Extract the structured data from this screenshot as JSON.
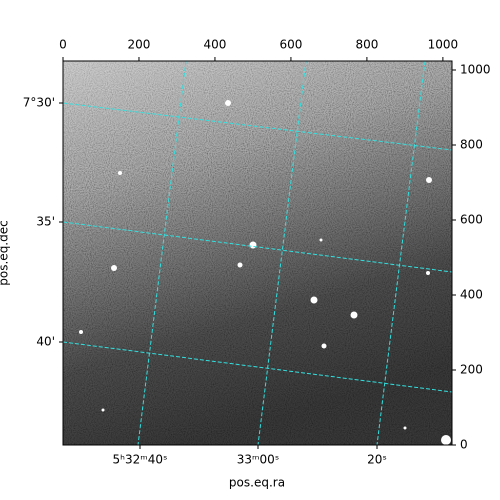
{
  "chart_data": {
    "type": "image",
    "xlabel": "pos.eq.ra",
    "ylabel": "pos.eq.dec",
    "xlim": [
      0,
      1024
    ],
    "ylim": [
      0,
      1024
    ],
    "xticks": [
      0,
      200,
      400,
      600,
      800,
      1000
    ],
    "yticks": [
      0,
      200,
      400,
      600,
      800,
      1000
    ],
    "ra_tick_labels": [
      "5ʰ32ᵐ40ˢ",
      "33ᵐ00ˢ",
      "20ˢ"
    ],
    "dec_tick_labels": [
      "7°30'",
      "35'",
      "40'"
    ],
    "grid_color": "#33e0e0"
  }
}
